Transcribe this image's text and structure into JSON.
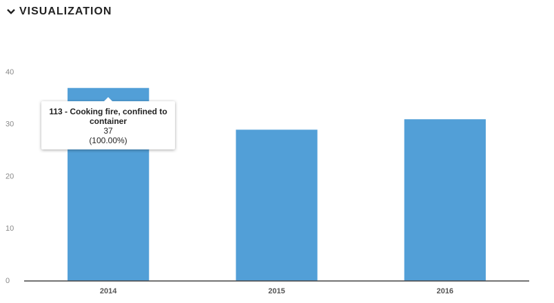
{
  "header": {
    "title": "VISUALIZATION"
  },
  "chart_data": {
    "type": "bar",
    "categories": [
      "2014",
      "2015",
      "2016"
    ],
    "series": [
      {
        "name": "113 - Cooking fire, confined to container",
        "color": "#529fd7",
        "values": [
          37,
          29,
          31
        ]
      }
    ],
    "ylim": [
      0,
      40
    ],
    "yticks": [
      0,
      10,
      20,
      30,
      40
    ],
    "grid": false
  },
  "tooltip": {
    "percent": "(100.00%)"
  }
}
